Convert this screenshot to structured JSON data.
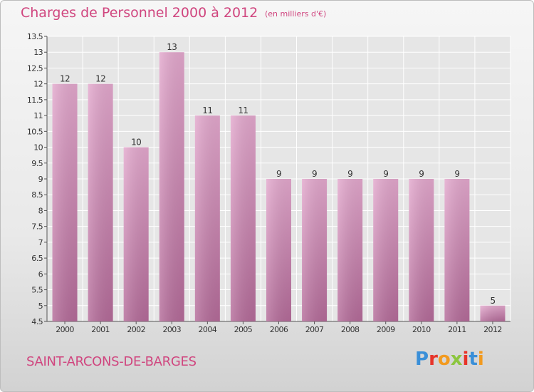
{
  "header": {
    "title": "Charges de Personnel 2000 à 2012",
    "subtitle": "(en milliers d'€)"
  },
  "footer": {
    "commune": "SAINT-ARCONS-DE-BARGES",
    "logo_text": "Proxiti",
    "logo_colors": [
      "#3a8fd8",
      "#e7342a",
      "#f29a1f",
      "#8cc63f",
      "#e7342a",
      "#3a8fd8",
      "#f29a1f"
    ]
  },
  "colors": {
    "bar_top": "#e3a8cd",
    "bar_bottom": "#b46b99",
    "accent": "#d0467f",
    "axis_text": "#333333"
  },
  "chart_data": {
    "type": "bar",
    "title": "Charges de Personnel 2000 à 2012",
    "subtitle": "(en milliers d'€)",
    "categories": [
      "2000",
      "2001",
      "2002",
      "2003",
      "2004",
      "2005",
      "2006",
      "2007",
      "2008",
      "2009",
      "2010",
      "2011",
      "2012"
    ],
    "values": [
      12,
      12,
      10,
      13,
      11,
      11,
      9,
      9,
      9,
      9,
      9,
      9,
      5
    ],
    "data_labels": [
      "12",
      "12",
      "10",
      "13",
      "11",
      "11",
      "9",
      "9",
      "9",
      "9",
      "9",
      "9",
      "5"
    ],
    "ylim": [
      4.5,
      13.5
    ],
    "yticks": [
      4.5,
      5,
      5.5,
      6,
      6.5,
      7,
      7.5,
      8,
      8.5,
      9,
      9.5,
      10,
      10.5,
      11,
      11.5,
      12,
      12.5,
      13,
      13.5
    ],
    "ytick_labels": [
      "4.5",
      "5",
      "5.5",
      "6",
      "6.5",
      "7",
      "7.5",
      "8",
      "8.5",
      "9",
      "9.5",
      "10",
      "10.5",
      "11",
      "11.5",
      "12",
      "12.5",
      "13",
      "13.5"
    ],
    "grid": true,
    "xlabel": "",
    "ylabel": ""
  }
}
